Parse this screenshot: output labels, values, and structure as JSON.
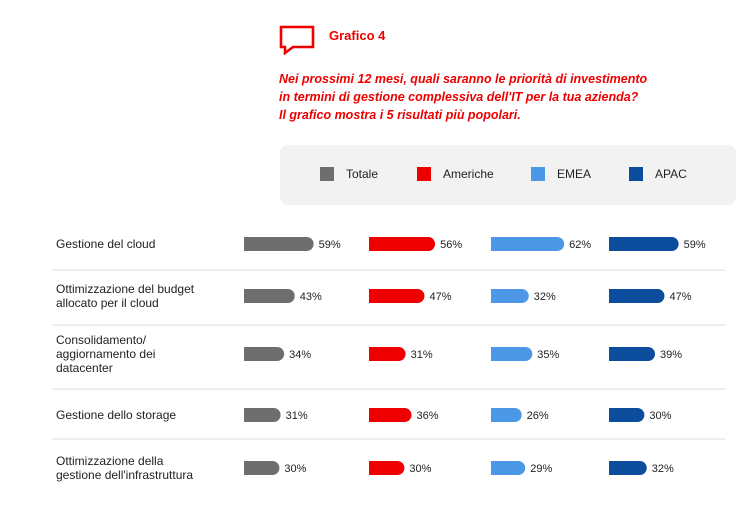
{
  "header": {
    "icon": "speech-bubble-icon",
    "title": "Grafico 4",
    "subtitle_lines": [
      "Nei prossimi 12 mesi, quali saranno le priorità di investimento",
      "in termini di gestione complessiva dell'IT per la tua azienda?",
      "Il grafico mostra i 5 risultati più popolari."
    ],
    "accent_color": "#ee0000"
  },
  "chart_data": {
    "type": "bar",
    "orientation": "horizontal",
    "legend_position": "top",
    "categories": [
      [
        "Gestione del cloud"
      ],
      [
        "Ottimizzazione del budget",
        "allocato per il cloud"
      ],
      [
        "Consolidamento/",
        "aggiornamento dei",
        "datacenter"
      ],
      [
        "Gestione dello storage"
      ],
      [
        "Ottimizzazione della",
        "gestione dell'infrastruttura"
      ]
    ],
    "series": [
      {
        "name": "Totale",
        "color": "#6e6e6e",
        "values": [
          59,
          43,
          34,
          31,
          30
        ],
        "labels": [
          "59%",
          "43%",
          "34%",
          "31%",
          "30%"
        ]
      },
      {
        "name": "Americhe",
        "color": "#ee0000",
        "values": [
          56,
          47,
          31,
          36,
          30
        ],
        "labels": [
          "56%",
          "47%",
          "31%",
          "36%",
          "30%"
        ]
      },
      {
        "name": "EMEA",
        "color": "#4c98e6",
        "values": [
          62,
          32,
          35,
          26,
          29
        ],
        "labels": [
          "62%",
          "32%",
          "35%",
          "26%",
          "29%"
        ]
      },
      {
        "name": "APAC",
        "color": "#0b4d9c",
        "values": [
          59,
          47,
          39,
          30,
          32
        ],
        "labels": [
          "59%",
          "47%",
          "39%",
          "30%",
          "32%"
        ]
      }
    ]
  }
}
